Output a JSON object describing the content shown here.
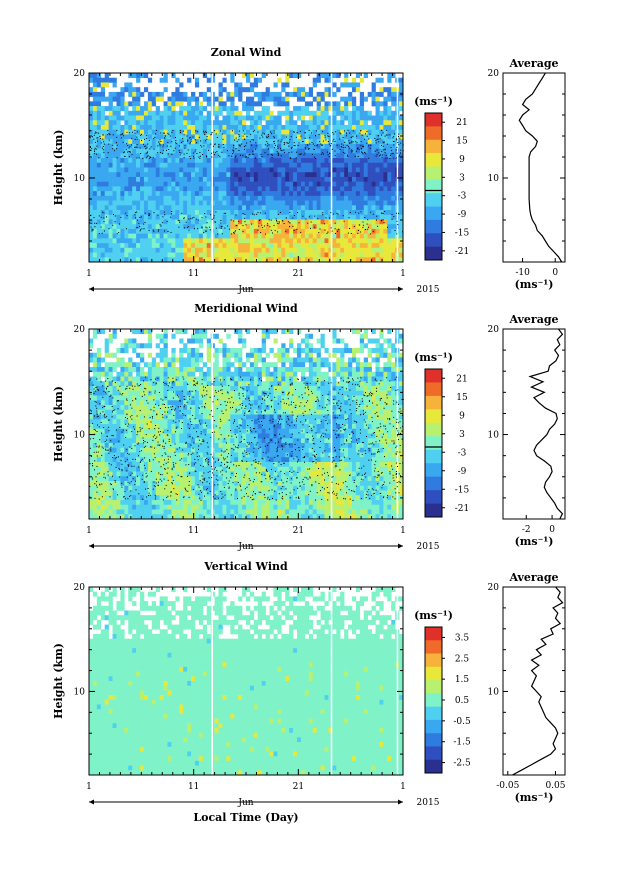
{
  "chart_data": [
    {
      "type": "heatmap",
      "title": "Zonal Wind",
      "ylabel": "Height (km)",
      "x_ticks": [
        "1",
        "11",
        "21",
        "1"
      ],
      "x_month": "Jun",
      "year": "2015",
      "ylim": [
        2,
        20
      ],
      "y_ticks": [
        10,
        20
      ],
      "colorbar": {
        "unit": "(ms⁻¹)",
        "ticks": [
          "21",
          "15",
          "9",
          "3",
          "-3",
          "-9",
          "-15",
          "-21"
        ]
      },
      "profile": {
        "title": "Average",
        "xlabel": "(ms⁻¹)",
        "x_ticks": [
          "-10",
          "0"
        ],
        "xlim": [
          -16,
          3
        ],
        "heights": [
          2,
          2.5,
          3,
          3.5,
          4,
          4.5,
          5,
          5.5,
          6,
          6.5,
          7,
          8,
          9,
          10,
          11,
          12,
          12.5,
          13,
          13.5,
          14,
          14.5,
          15,
          15.5,
          16,
          16.5,
          17,
          17.5,
          18,
          18.5,
          19,
          19.5,
          20
        ],
        "values": [
          2,
          1,
          -0.5,
          -2,
          -3,
          -4,
          -5.5,
          -6,
          -7,
          -7.5,
          -7.8,
          -8,
          -8,
          -8,
          -8,
          -8,
          -7.5,
          -6,
          -5.5,
          -7,
          -9,
          -10,
          -11,
          -10,
          -8,
          -10,
          -9,
          -7,
          -6,
          -5,
          -4,
          -3
        ]
      }
    },
    {
      "type": "heatmap",
      "title": "Meridional Wind",
      "ylabel": "Height (km)",
      "x_ticks": [
        "1",
        "11",
        "21",
        "1"
      ],
      "x_month": "Jun",
      "year": "2015",
      "ylim": [
        2,
        20
      ],
      "y_ticks": [
        10,
        20
      ],
      "colorbar": {
        "unit": "(ms⁻¹)",
        "ticks": [
          "21",
          "15",
          "9",
          "3",
          "-3",
          "-9",
          "-15",
          "-21"
        ]
      },
      "profile": {
        "title": "Average",
        "xlabel": "(ms⁻¹)",
        "x_ticks": [
          "-2",
          "0"
        ],
        "xlim": [
          -3.8,
          1
        ],
        "heights": [
          2,
          2.5,
          3,
          3.5,
          4,
          4.5,
          5,
          5.5,
          6,
          6.5,
          7,
          7.5,
          8,
          8.5,
          9,
          9.5,
          10,
          10.5,
          11,
          11.5,
          12,
          12.5,
          13,
          13.5,
          14,
          14.5,
          15,
          15.5,
          16,
          16.5,
          17,
          17.5,
          18,
          18.5,
          19,
          19.5,
          20
        ],
        "values": [
          0.6,
          0.8,
          0.4,
          0.2,
          -0.1,
          -0.4,
          -0.6,
          -0.5,
          -0.2,
          0,
          -0.1,
          -0.6,
          -1.2,
          -1.4,
          -1.2,
          -0.8,
          -0.4,
          -0.2,
          0.2,
          0.4,
          0.3,
          -0.5,
          -1.0,
          -1.4,
          -0.6,
          -1.6,
          -0.7,
          -1.7,
          -0.3,
          -0.2,
          0.3,
          0.5,
          0.2,
          0.6,
          0.4,
          0.8,
          0.5
        ]
      }
    },
    {
      "type": "heatmap",
      "title": "Vertical Wind",
      "ylabel": "Height (km)",
      "x_ticks": [
        "1",
        "11",
        "21",
        "1"
      ],
      "x_month": "Jun",
      "year": "2015",
      "xlabel": "Local Time (Day)",
      "ylim": [
        2,
        20
      ],
      "y_ticks": [
        10,
        20
      ],
      "colorbar": {
        "unit": "(ms⁻¹)",
        "ticks": [
          "3.5",
          "2.5",
          "1.5",
          "0.5",
          "-0.5",
          "-1.5",
          "-2.5"
        ]
      },
      "profile": {
        "title": "Average",
        "xlabel": "(ms⁻¹)",
        "x_ticks": [
          "-0.05",
          "0.05"
        ],
        "xlim": [
          -0.06,
          0.07
        ],
        "heights": [
          2,
          2.5,
          3,
          3.5,
          4,
          4.5,
          5,
          5.5,
          6,
          6.5,
          7,
          7.5,
          8,
          8.5,
          9,
          9.5,
          10,
          10.5,
          11,
          11.5,
          12,
          12.5,
          13,
          13.5,
          14,
          14.5,
          15,
          15.5,
          16,
          16.5,
          17,
          17.5,
          18,
          18.5,
          19,
          19.5,
          20
        ],
        "values": [
          -0.04,
          -0.02,
          0.0,
          0.02,
          0.04,
          0.05,
          0.045,
          0.05,
          0.055,
          0.05,
          0.04,
          0.03,
          0.025,
          0.02,
          0.015,
          0.02,
          0.01,
          0.0,
          0.005,
          0.01,
          0.0,
          0.015,
          0.0,
          0.02,
          0.01,
          0.03,
          0.02,
          0.045,
          0.04,
          0.06,
          0.05,
          0.055,
          0.045,
          0.065,
          0.055,
          0.06,
          0.05
        ]
      }
    }
  ],
  "palette": [
    "#2b2f8f",
    "#2f4fbf",
    "#2f7be0",
    "#39a8f0",
    "#4fd0f0",
    "#7ff2c8",
    "#b8f070",
    "#e8e83a",
    "#f6b23a",
    "#f06a2a",
    "#e0302a"
  ]
}
